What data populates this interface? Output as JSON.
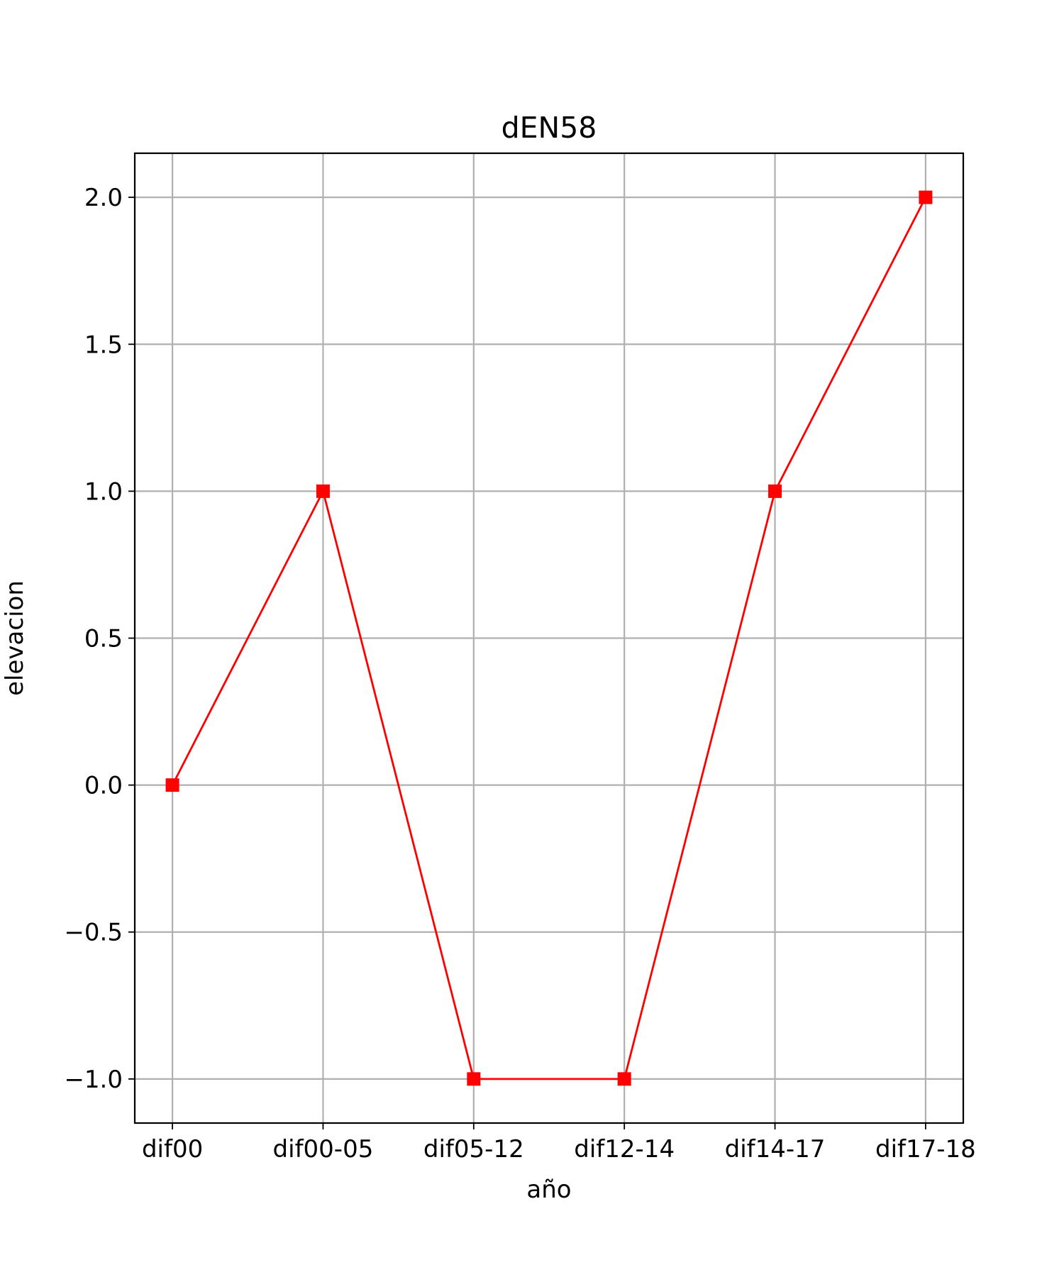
{
  "chart_data": {
    "type": "line",
    "title": "dEN58",
    "xlabel": "año",
    "ylabel": "elevacion",
    "categories": [
      "dif00",
      "dif00-05",
      "dif05-12",
      "dif12-14",
      "dif14-17",
      "dif17-18"
    ],
    "series": [
      {
        "values": [
          0,
          1,
          -1,
          -1,
          1,
          2
        ],
        "color": "#ff0000",
        "marker": "square"
      }
    ],
    "ylim": [
      -1.15,
      2.15
    ],
    "yticks": [
      -1.0,
      -0.5,
      0.0,
      0.5,
      1.0,
      1.5,
      2.0
    ],
    "ytick_labels": [
      "−1.0",
      "−0.5",
      "0.0",
      "0.5",
      "1.0",
      "1.5",
      "2.0"
    ],
    "grid": true,
    "legend": "none"
  }
}
